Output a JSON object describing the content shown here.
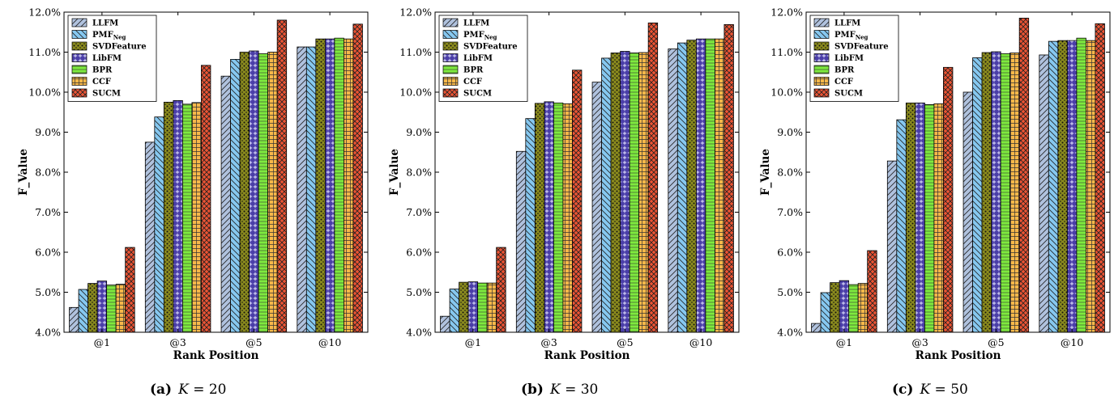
{
  "figure": {
    "legend": [
      "LLFM",
      "PMF_Neg",
      "SVDFeature",
      "LibFM",
      "BPR",
      "CCF",
      "SUCM"
    ],
    "ylabel": "F_Value",
    "xlabel": "Rank Position",
    "categories": [
      "@1",
      "@3",
      "@5",
      "@10"
    ],
    "yticks": [
      "4.0%",
      "5.0%",
      "6.0%",
      "7.0%",
      "8.0%",
      "9.0%",
      "10.0%",
      "11.0%",
      "12.0%"
    ]
  },
  "series_colors": [
    "#b0c2de",
    "#86c8f0",
    "#8a8a1e",
    "#4a3ea8",
    "#7eea3e",
    "#f7b84a",
    "#ec5434"
  ],
  "series_patterns": [
    "diagonal-lines",
    "backslash-lines",
    "dots",
    "stars",
    "horizontal-lines",
    "grid",
    "crosshatch"
  ],
  "chart_data": [
    {
      "type": "bar",
      "caption_letter": "(a)",
      "caption_var": "K",
      "caption_eq": " = 20",
      "categories": [
        "@1",
        "@3",
        "@5",
        "@10"
      ],
      "xlabel": "Rank Position",
      "ylabel": "F_Value",
      "ylim": [
        4.0,
        12.0
      ],
      "legend_position": "top-left",
      "series": [
        {
          "name": "LLFM",
          "values": [
            4.62,
            8.75,
            10.4,
            11.13
          ]
        },
        {
          "name": "PMF_Neg",
          "values": [
            5.07,
            9.38,
            10.82,
            11.13
          ]
        },
        {
          "name": "SVDFeature",
          "values": [
            5.22,
            9.75,
            11.0,
            11.33
          ]
        },
        {
          "name": "LibFM",
          "values": [
            5.28,
            9.79,
            11.03,
            11.33
          ]
        },
        {
          "name": "BPR",
          "values": [
            5.18,
            9.7,
            10.96,
            11.35
          ]
        },
        {
          "name": "CCF",
          "values": [
            5.2,
            9.74,
            11.0,
            11.33
          ]
        },
        {
          "name": "SUCM",
          "values": [
            6.12,
            10.67,
            11.8,
            11.7
          ]
        }
      ]
    },
    {
      "type": "bar",
      "caption_letter": "(b)",
      "caption_var": "K",
      "caption_eq": " = 30",
      "categories": [
        "@1",
        "@3",
        "@5",
        "@10"
      ],
      "xlabel": "Rank Position",
      "ylabel": "F_Value",
      "ylim": [
        4.0,
        12.0
      ],
      "legend_position": "top-left",
      "series": [
        {
          "name": "LLFM",
          "values": [
            4.4,
            8.52,
            10.25,
            11.08
          ]
        },
        {
          "name": "PMF_Neg",
          "values": [
            5.08,
            9.34,
            10.85,
            11.23
          ]
        },
        {
          "name": "SVDFeature",
          "values": [
            5.25,
            9.72,
            10.98,
            11.3
          ]
        },
        {
          "name": "LibFM",
          "values": [
            5.26,
            9.76,
            11.02,
            11.33
          ]
        },
        {
          "name": "BPR",
          "values": [
            5.23,
            9.73,
            10.98,
            11.33
          ]
        },
        {
          "name": "CCF",
          "values": [
            5.23,
            9.71,
            10.99,
            11.33
          ]
        },
        {
          "name": "SUCM",
          "values": [
            6.12,
            10.55,
            11.73,
            11.69
          ]
        }
      ]
    },
    {
      "type": "bar",
      "caption_letter": "(c)",
      "caption_var": "K",
      "caption_eq": " = 50",
      "categories": [
        "@1",
        "@3",
        "@5",
        "@10"
      ],
      "xlabel": "Rank Position",
      "ylabel": "F_Value",
      "ylim": [
        4.0,
        12.0
      ],
      "legend_position": "top-left",
      "series": [
        {
          "name": "LLFM",
          "values": [
            4.22,
            8.28,
            10.0,
            10.93
          ]
        },
        {
          "name": "PMF_Neg",
          "values": [
            4.99,
            9.31,
            10.86,
            11.27
          ]
        },
        {
          "name": "SVDFeature",
          "values": [
            5.24,
            9.73,
            10.99,
            11.29
          ]
        },
        {
          "name": "LibFM",
          "values": [
            5.29,
            9.73,
            11.01,
            11.29
          ]
        },
        {
          "name": "BPR",
          "values": [
            5.19,
            9.69,
            10.96,
            11.35
          ]
        },
        {
          "name": "CCF",
          "values": [
            5.22,
            9.71,
            10.98,
            11.29
          ]
        },
        {
          "name": "SUCM",
          "values": [
            6.04,
            10.62,
            11.85,
            11.71
          ]
        }
      ]
    }
  ]
}
